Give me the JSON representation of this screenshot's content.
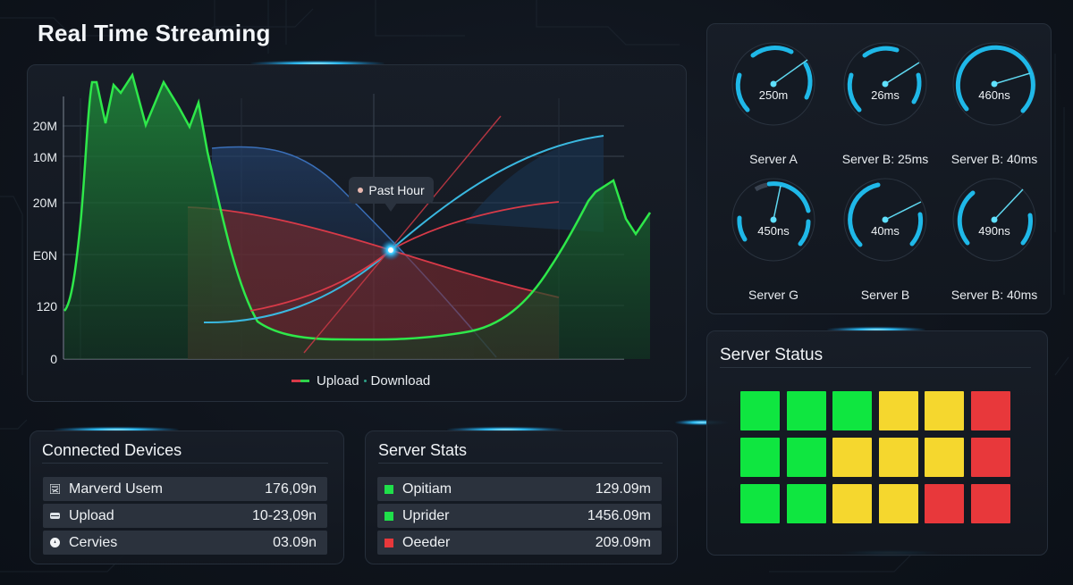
{
  "header": {
    "title": "Real Time Streaming"
  },
  "chart": {
    "y_ticks": [
      "20M",
      "10M",
      "20M",
      "E0N",
      "120",
      "0"
    ],
    "tooltip": "Past Hour",
    "legend": {
      "upload": "Upload",
      "separator": "·",
      "download": "Download"
    }
  },
  "chart_data": {
    "type": "area",
    "title": "Real Time Streaming",
    "xlabel": "",
    "ylabel": "",
    "y_tick_labels": [
      "0",
      "120",
      "E0N",
      "20M",
      "10M",
      "20M"
    ],
    "grid": true,
    "legend": [
      "Upload",
      "Download"
    ],
    "legend_position": "bottom",
    "annotations": [
      "Past Hour"
    ],
    "series": [
      {
        "name": "Download (green area)",
        "color": "#2ee84a",
        "x": [
          0,
          0.05,
          0.1,
          0.13,
          0.15,
          0.18,
          0.2,
          0.23,
          0.26,
          0.3,
          0.34,
          0.38,
          0.42,
          0.46,
          0.5,
          0.6,
          0.7,
          0.75,
          0.8,
          0.85,
          0.88,
          0.9,
          0.93,
          0.96,
          1.0
        ],
        "values": [
          120,
          2600,
          2750,
          2550,
          2780,
          2400,
          2700,
          2500,
          1800,
          150,
          120,
          105,
          110,
          100,
          100,
          110,
          130,
          180,
          400,
          950,
          1200,
          1600,
          1150,
          1000,
          1200
        ]
      },
      {
        "name": "Upload (red area)",
        "color": "#d83a48",
        "x": [
          0.28,
          0.4,
          0.52,
          0.62,
          0.74,
          0.82
        ],
        "values": [
          1250,
          1200,
          1050,
          800,
          600,
          520
        ]
      },
      {
        "name": "Blue area curve",
        "color": "#3a6fb8",
        "x": [
          0.28,
          0.35,
          0.45,
          0.52,
          0.62,
          0.72
        ],
        "values": [
          1600,
          1620,
          1450,
          1100,
          600,
          80
        ]
      },
      {
        "name": "Cyan rising curve",
        "color": "#3ab8e0",
        "x": [
          0.3,
          0.4,
          0.52,
          0.62,
          0.74,
          0.9
        ],
        "values": [
          300,
          310,
          450,
          800,
          1400,
          1900
        ]
      },
      {
        "name": "Red rising curve",
        "color": "#d83a48",
        "x": [
          0.3,
          0.42,
          0.52,
          0.62,
          0.82
        ],
        "values": [
          430,
          520,
          700,
          900,
          1200
        ]
      }
    ]
  },
  "gauges": [
    {
      "value": "250m",
      "label": "Server A"
    },
    {
      "value": "26ms",
      "label": "Server B: 25ms"
    },
    {
      "value": "460ns",
      "label": "Server B: 40ms"
    },
    {
      "value": "450ns",
      "label": "Server G"
    },
    {
      "value": "40ms",
      "label": "Server B"
    },
    {
      "value": "490ns",
      "label": "Server B: 40ms"
    }
  ],
  "server_status": {
    "title": "Server Status",
    "colors": {
      "green": "#0fe640",
      "yellow": "#f5d72e",
      "red": "#e8383b"
    },
    "grid": [
      [
        "green",
        "green",
        "green",
        "yellow",
        "yellow",
        "red"
      ],
      [
        "green",
        "green",
        "yellow",
        "yellow",
        "yellow",
        "red"
      ],
      [
        "green",
        "green",
        "yellow",
        "yellow",
        "red",
        "red"
      ]
    ]
  },
  "connected_devices": {
    "title": "Connected Devices",
    "rows": [
      {
        "icon": "users-icon",
        "label": "Marverd Usem",
        "value": "176,09n"
      },
      {
        "icon": "upload-bar-icon",
        "label": "Upload",
        "value": "10-23,09n"
      },
      {
        "icon": "pin-icon",
        "label": "Cervies",
        "value": "03.09n"
      }
    ]
  },
  "server_stats": {
    "title": "Server Stats",
    "rows": [
      {
        "status": "green",
        "label": "Opitiam",
        "value": "129.09m"
      },
      {
        "status": "green",
        "label": "Uprider",
        "value": "1456.09m"
      },
      {
        "status": "red",
        "label": "Oeeder",
        "value": "209.09m"
      }
    ]
  }
}
